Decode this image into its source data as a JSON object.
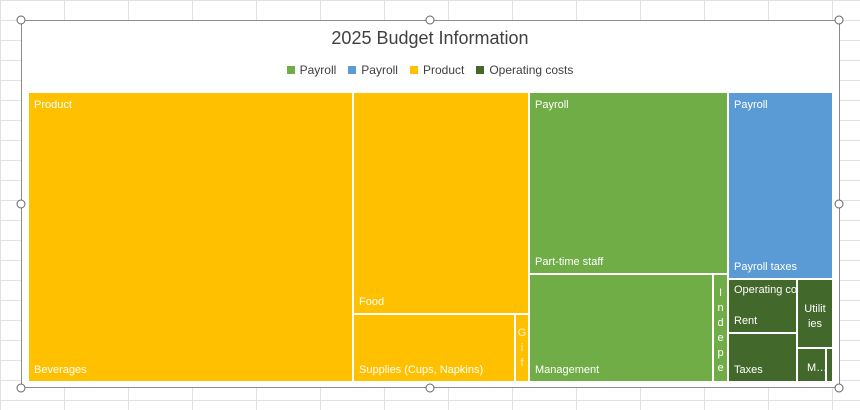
{
  "chart_data": {
    "type": "treemap",
    "title": "2025 Budget Information",
    "legend": {
      "placement": "top",
      "entries": [
        {
          "name": "Payroll",
          "color": "#70ad47"
        },
        {
          "name": "Payroll",
          "color": "#5b9bd5"
        },
        {
          "name": "Product",
          "color": "#ffc000"
        },
        {
          "name": "Operating costs",
          "color": "#43682b"
        }
      ]
    },
    "groups": [
      {
        "name": "Product",
        "color": "#ffc000",
        "items": [
          {
            "label": "Beverages",
            "value": 94
          },
          {
            "label": "Food",
            "value": 39
          },
          {
            "label": "Supplies (Cups, Napkins)",
            "value": 11
          },
          {
            "label": "Gif",
            "value": 0.9
          }
        ]
      },
      {
        "name": "Payroll",
        "color": "#70ad47",
        "items": [
          {
            "label": "Part-time staff",
            "value": 36
          },
          {
            "label": "Management",
            "value": 20
          },
          {
            "label": "Indepe",
            "value": 1.5
          }
        ]
      },
      {
        "name": "Payroll",
        "color": "#5b9bd5",
        "items": [
          {
            "label": "Payroll taxes",
            "value": 19
          }
        ]
      },
      {
        "name": "Operating costs",
        "color": "#43682b",
        "items": [
          {
            "label": "Rent",
            "value": 3.6
          },
          {
            "label": "Taxes",
            "value": 3.3
          },
          {
            "label": "Utilit\nies",
            "value": 2.4
          },
          {
            "label": "M…",
            "value": 0.9
          },
          {
            "label": "",
            "value": 0.2
          }
        ]
      }
    ]
  }
}
